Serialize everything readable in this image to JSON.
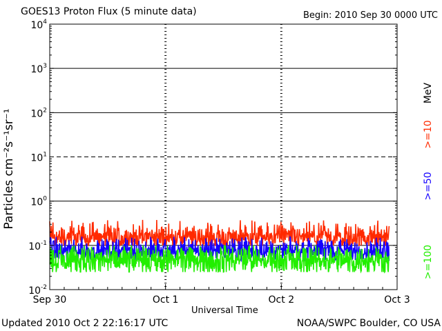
{
  "chart_data": {
    "type": "line",
    "title": "GOES13 Proton Flux (5 minute data)",
    "begin_label": "Begin: 2010 Sep 30 0000 UTC",
    "xlabel": "Universal Time",
    "ylabel": "Particles cm⁻²s⁻¹sr⁻¹",
    "y_scale": "log",
    "ylim": [
      0.01,
      10000
    ],
    "y_ticks": [
      {
        "value": 10000,
        "base": "10",
        "exp": "4"
      },
      {
        "value": 1000,
        "base": "10",
        "exp": "3"
      },
      {
        "value": 100,
        "base": "10",
        "exp": "2"
      },
      {
        "value": 10,
        "base": "10",
        "exp": "1"
      },
      {
        "value": 1,
        "base": "10",
        "exp": "0"
      },
      {
        "value": 0.1,
        "base": "10",
        "exp": "-1"
      },
      {
        "value": 0.01,
        "base": "10",
        "exp": "-2"
      }
    ],
    "thresholds": [
      {
        "value": 1000,
        "style": "solid"
      },
      {
        "value": 100,
        "style": "solid"
      },
      {
        "value": 10,
        "style": "dashed"
      },
      {
        "value": 1,
        "style": "solid"
      },
      {
        "value": 0.1,
        "style": "solid"
      }
    ],
    "xlim_days": [
      0,
      3
    ],
    "x_ticks": [
      {
        "day": 0,
        "label": "Sep 30"
      },
      {
        "day": 1,
        "label": "Oct 1"
      },
      {
        "day": 2,
        "label": "Oct 2"
      },
      {
        "day": 3,
        "label": "Oct 3"
      }
    ],
    "data_end_day": 2.93,
    "unit_label": "MeV",
    "series": [
      {
        "name": ">=10",
        "color": "#ff2a00",
        "typical": 0.15,
        "min": 0.1,
        "max": 0.38,
        "spread": 0.18
      },
      {
        "name": ">=50",
        "color": "#1400ff",
        "typical": 0.075,
        "min": 0.045,
        "max": 0.16,
        "spread": 0.16
      },
      {
        "name": ">=100",
        "color": "#22ee00",
        "typical": 0.045,
        "min": 0.025,
        "max": 0.1,
        "spread": 0.22
      }
    ]
  },
  "footer": {
    "updated": "Updated 2010 Oct  2 22:16:17 UTC",
    "source": "NOAA/SWPC Boulder, CO USA"
  }
}
